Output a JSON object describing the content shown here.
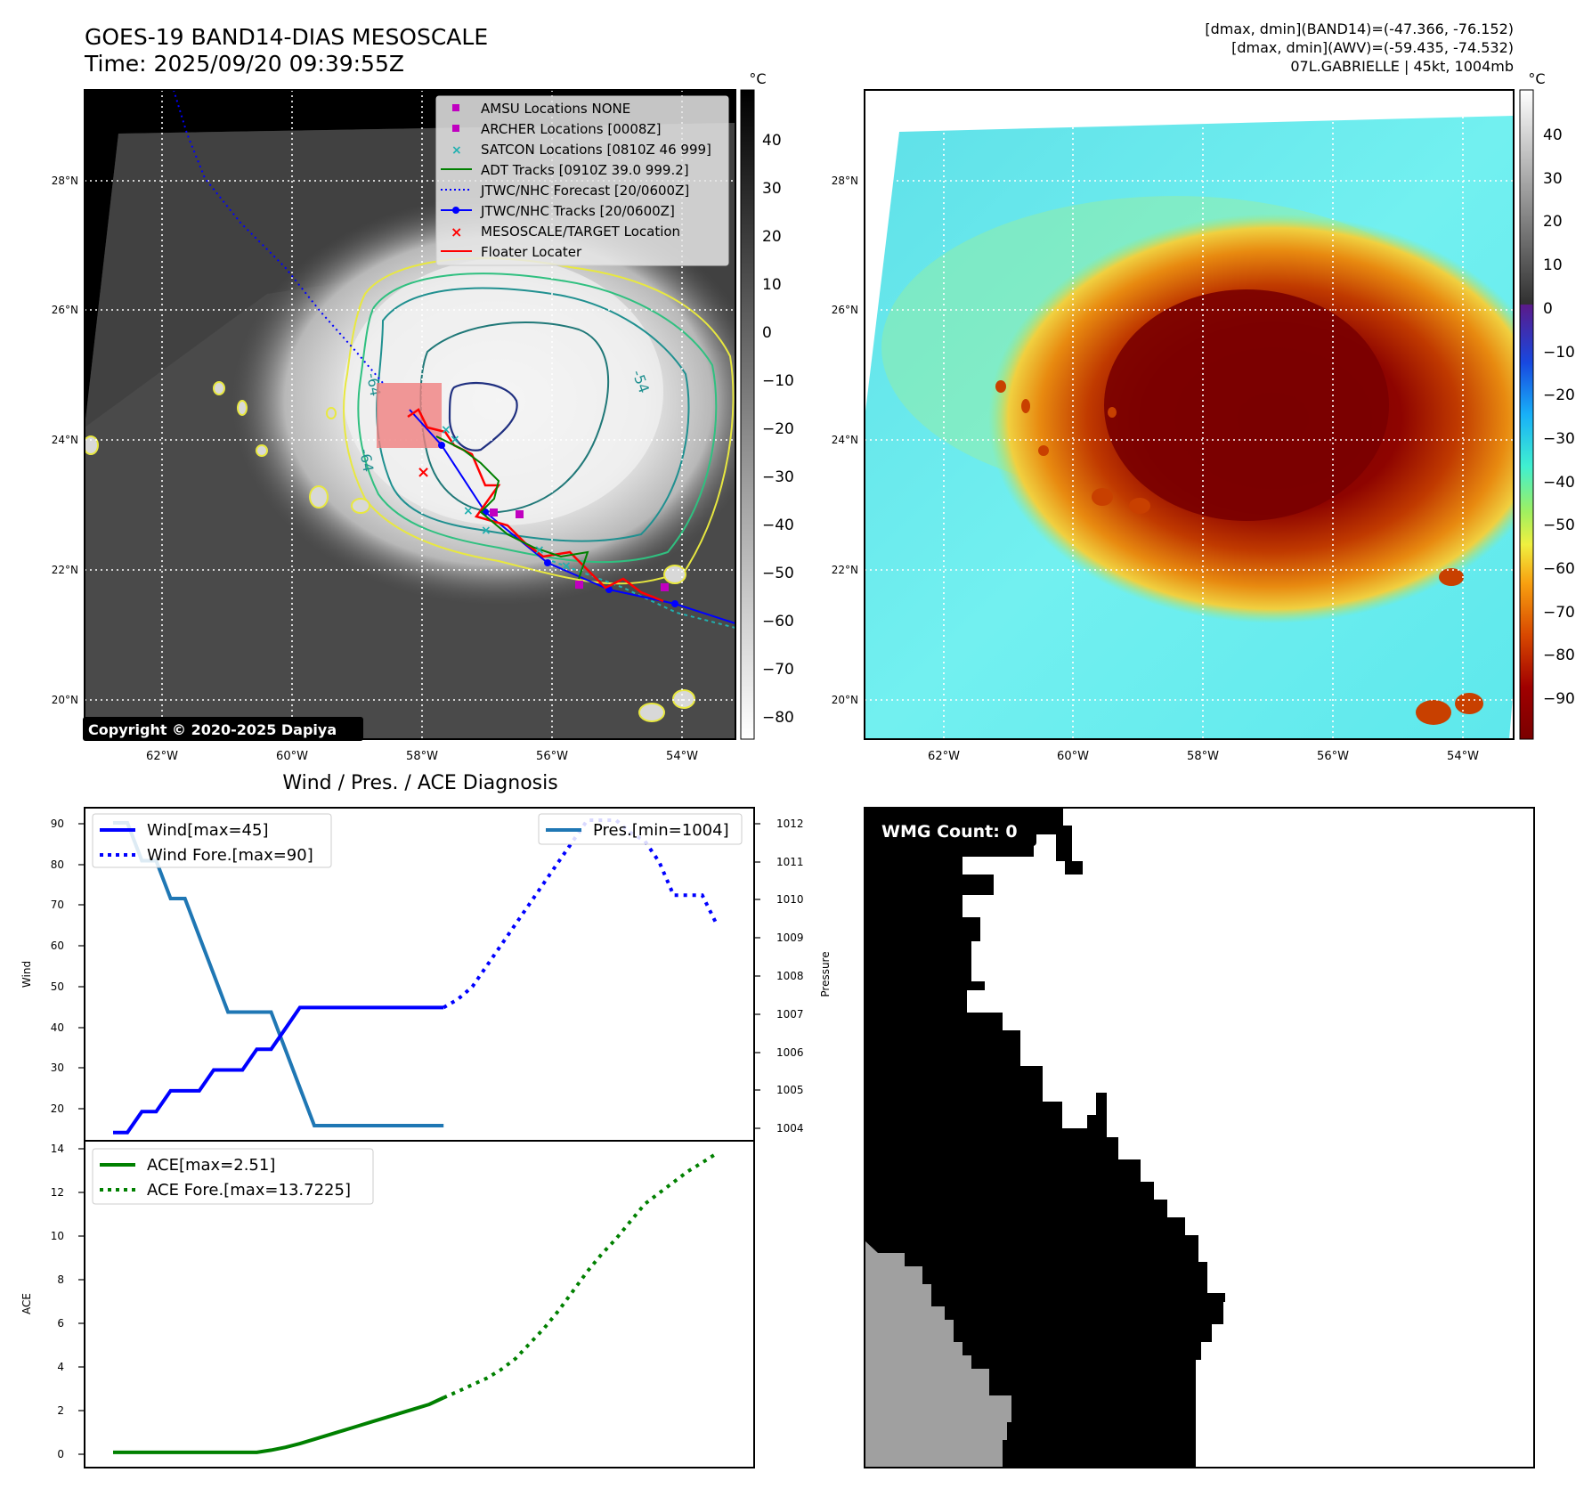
{
  "header": {
    "title_line1": "GOES-19 BAND14-DIAS MESOSCALE",
    "title_line2": "Time: 2025/09/20 09:39:55Z",
    "right_line1": "[dmax, dmin](BAND14)=(-47.366, -76.152)",
    "right_line2": "[dmax, dmin](AWV)=(-59.435, -74.532)",
    "right_line3": "07L.GABRIELLE | 45kt, 1004mb"
  },
  "map": {
    "lon_ticks": [
      "62°W",
      "60°W",
      "58°W",
      "56°W",
      "54°W"
    ],
    "lat_ticks": [
      "28°N",
      "26°N",
      "24°N",
      "22°N",
      "20°N"
    ],
    "copyright": "Copyright © 2020-2025 Dapiya",
    "contour_labels": [
      "-54",
      "-64",
      "-64"
    ],
    "legend": [
      {
        "label": "AMSU Locations NONE",
        "color": "#c000c0",
        "marker": "square"
      },
      {
        "label": "ARCHER Locations [0008Z]",
        "color": "#c000c0",
        "marker": "square"
      },
      {
        "label": "SATCON Locations [0810Z 46 999]",
        "color": "#20b0b0",
        "marker": "x"
      },
      {
        "label": "ADT Tracks [0910Z 39.0 999.2]",
        "color": "#008000",
        "marker": "line"
      },
      {
        "label": "JTWC/NHC Forecast [20/0600Z]",
        "color": "#0000ff",
        "marker": "dotted"
      },
      {
        "label": "JTWC/NHC Tracks [20/0600Z]",
        "color": "#0000ff",
        "marker": "line-dot"
      },
      {
        "label": "MESOSCALE/TARGET Location",
        "color": "#ff0000",
        "marker": "x"
      },
      {
        "label": "Floater Locater",
        "color": "#ff0000",
        "marker": "line"
      }
    ]
  },
  "colorbar_left": {
    "unit": "°C",
    "ticks": [
      "40",
      "30",
      "20",
      "10",
      "0",
      "−10",
      "−20",
      "−30",
      "−40",
      "−50",
      "−60",
      "−70",
      "−80"
    ]
  },
  "colorbar_right": {
    "unit": "°C",
    "ticks": [
      "40",
      "30",
      "20",
      "10",
      "0",
      "−10",
      "−20",
      "−30",
      "−40",
      "−50",
      "−60",
      "−70",
      "−80",
      "−90"
    ]
  },
  "diagnosis": {
    "title": "Wind / Pres. / ACE Diagnosis",
    "wind_ylabel": "Wind",
    "pres_ylabel": "Pressure",
    "ace_ylabel": "ACE",
    "wind_yticks": [
      "90",
      "80",
      "70",
      "60",
      "50",
      "40",
      "30",
      "20"
    ],
    "pres_yticks": [
      "1012",
      "1011",
      "1010",
      "1009",
      "1008",
      "1007",
      "1006",
      "1005",
      "1004"
    ],
    "ace_yticks": [
      "14",
      "12",
      "10",
      "8",
      "6",
      "4",
      "2",
      "0"
    ],
    "legend_wind": "Wind[max=45]",
    "legend_wind_fore": "Wind Fore.[max=90]",
    "legend_pres": "Pres.[min=1004]",
    "legend_ace": "ACE[max=2.51]",
    "legend_ace_fore": "ACE Fore.[max=13.7225]",
    "wmg_count": "WMG Count: 0"
  },
  "chart_data": [
    {
      "type": "line",
      "title": "Wind / Pres. / ACE Diagnosis",
      "ylabel": "Wind",
      "ylim": [
        13,
        93
      ],
      "xlim": [
        -2,
        45
      ],
      "series": [
        {
          "name": "Wind[max=45]",
          "color": "#0000ff",
          "style": "solid",
          "x": [
            0,
            1,
            1,
            2,
            2,
            3,
            3,
            4,
            4,
            5,
            5,
            6,
            6,
            7,
            7,
            8,
            8,
            9,
            9,
            10,
            10,
            11,
            11,
            12,
            12,
            13,
            13,
            14,
            14,
            15,
            15,
            16,
            16,
            17,
            17,
            18,
            18,
            19,
            19,
            20,
            20,
            21,
            21,
            22,
            22,
            23
          ],
          "y": [
            15,
            15,
            15,
            20,
            20,
            20,
            20,
            25,
            25,
            25,
            25,
            25,
            25,
            30,
            30,
            30,
            30,
            30,
            30,
            35,
            35,
            35,
            35,
            40,
            40,
            45,
            45,
            45,
            45,
            45,
            45,
            45,
            45,
            45,
            45,
            45,
            45,
            45,
            45,
            45,
            45,
            45,
            45,
            45,
            45,
            45
          ]
        },
        {
          "name": "Wind Fore.[max=90]",
          "color": "#0000ff",
          "style": "dotted",
          "x": [
            23,
            24,
            25,
            26,
            27,
            28,
            29,
            30,
            31,
            32,
            33,
            34,
            35,
            36,
            37,
            38,
            39,
            40,
            41,
            42
          ],
          "y": [
            45,
            47,
            50,
            55,
            60,
            65,
            70,
            75,
            80,
            85,
            90,
            90,
            90,
            87,
            85,
            80,
            72,
            72,
            72,
            65
          ]
        }
      ]
    },
    {
      "type": "line",
      "ylabel": "Pressure",
      "ylim": [
        1003.6,
        1012.4
      ],
      "series": [
        {
          "name": "Pres.[min=1004]",
          "color": "#1f77b4",
          "style": "solid",
          "x": [
            0,
            1,
            1,
            2,
            2,
            3,
            3,
            4,
            4,
            5,
            5,
            6,
            6,
            7,
            7,
            8,
            8,
            9,
            9,
            10,
            10,
            11,
            11,
            12,
            12,
            13,
            13,
            14,
            14,
            15,
            15,
            16,
            16,
            17,
            17,
            18,
            18,
            19,
            19,
            20,
            20,
            21,
            21,
            22,
            22,
            23
          ],
          "y": [
            1012,
            1012,
            1012,
            1011,
            1011,
            1011,
            1011,
            1010,
            1010,
            1010,
            1010,
            1009,
            1009,
            1008,
            1008,
            1007,
            1007,
            1007,
            1007,
            1007,
            1007,
            1007,
            1007,
            1006,
            1006,
            1005,
            1005,
            1004,
            1004,
            1004,
            1004,
            1004,
            1004,
            1004,
            1004,
            1004,
            1004,
            1004,
            1004,
            1004,
            1004,
            1004,
            1004,
            1004,
            1004,
            1004
          ]
        }
      ]
    },
    {
      "type": "line",
      "ylabel": "ACE",
      "ylim": [
        -0.7,
        14.3
      ],
      "series": [
        {
          "name": "ACE[max=2.51]",
          "color": "#008000",
          "style": "solid",
          "x": [
            0,
            2,
            4,
            6,
            8,
            10,
            11,
            12,
            13,
            14,
            15,
            16,
            17,
            18,
            19,
            20,
            21,
            22,
            23
          ],
          "y": [
            0,
            0,
            0,
            0,
            0,
            0,
            0.1,
            0.23,
            0.4,
            0.6,
            0.8,
            1.0,
            1.2,
            1.4,
            1.6,
            1.8,
            2.0,
            2.2,
            2.51
          ]
        },
        {
          "name": "ACE Fore.[max=13.7225]",
          "color": "#008000",
          "style": "dotted",
          "x": [
            23,
            24,
            25,
            26,
            27,
            28,
            29,
            30,
            31,
            32,
            33,
            34,
            35,
            36,
            37,
            38,
            39,
            40,
            41,
            42
          ],
          "y": [
            2.51,
            2.8,
            3.1,
            3.4,
            3.8,
            4.3,
            5.0,
            5.7,
            6.5,
            7.4,
            8.3,
            9.1,
            9.8,
            10.6,
            11.4,
            11.9,
            12.4,
            12.9,
            13.3,
            13.72
          ]
        }
      ]
    }
  ]
}
